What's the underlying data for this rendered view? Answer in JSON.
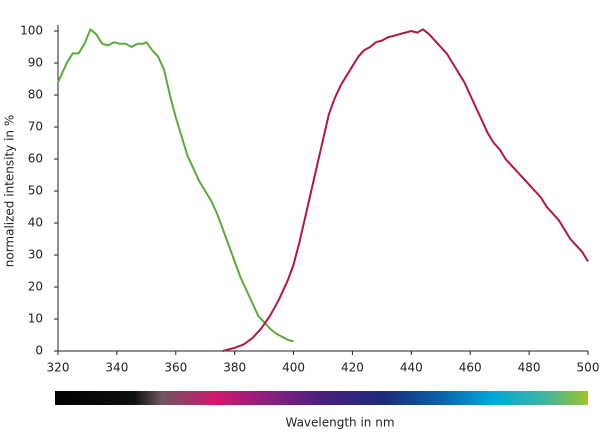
{
  "chart_data": {
    "type": "line",
    "x_label": "Wavelength in nm",
    "y_label": "normalized intensity in %",
    "xlim": [
      320,
      500
    ],
    "xticks": [
      320,
      340,
      360,
      380,
      400,
      420,
      440,
      460,
      480,
      500
    ],
    "ylim": [
      0,
      100
    ],
    "yticks": [
      0,
      10,
      20,
      30,
      40,
      50,
      60,
      70,
      80,
      90,
      100
    ],
    "series": [
      {
        "color": "#5aab3a",
        "x": [
          320,
          323,
          325,
          327,
          329,
          331,
          333,
          335,
          337,
          339,
          341,
          343,
          345,
          347,
          349,
          350,
          352,
          354,
          356,
          358,
          360,
          362,
          364,
          366,
          368,
          370,
          372,
          374,
          376,
          378,
          380,
          382,
          384,
          386,
          388,
          390,
          392,
          394,
          396,
          398,
          400
        ],
        "values": [
          84,
          90,
          93,
          93,
          96,
          100.5,
          99,
          96,
          95.5,
          96.5,
          96,
          96,
          95,
          96,
          96,
          96.5,
          94,
          92,
          88,
          80,
          73,
          67,
          61,
          57,
          53,
          50,
          47,
          43,
          38,
          33,
          28,
          23,
          19,
          15,
          11,
          9,
          7,
          5.5,
          4.5,
          3.5,
          3
        ]
      },
      {
        "color": "#b5173f",
        "x": [
          376,
          380,
          383,
          386,
          389,
          392,
          395,
          398,
          400,
          402,
          404,
          406,
          408,
          410,
          412,
          414,
          416,
          418,
          420,
          422,
          424,
          426,
          428,
          430,
          432,
          434,
          436,
          438,
          440,
          442,
          444,
          446,
          448,
          450,
          452,
          454,
          456,
          458,
          460,
          462,
          464,
          466,
          468,
          470,
          472,
          474,
          476,
          478,
          480,
          482,
          484,
          486,
          488,
          490,
          492,
          494,
          496,
          498,
          500
        ],
        "values": [
          0,
          1,
          2,
          4,
          7,
          11,
          16,
          22,
          27,
          34,
          42,
          50,
          58,
          66,
          74,
          79,
          83,
          86,
          89,
          92,
          94,
          95,
          96.5,
          97,
          98,
          98.5,
          99,
          99.5,
          100,
          99.5,
          100.5,
          99,
          97,
          95,
          93,
          90,
          87,
          84,
          80,
          76,
          72,
          68,
          65,
          63,
          60,
          58,
          56,
          54,
          52,
          50,
          48,
          45,
          43,
          41,
          38,
          35,
          33,
          31,
          28
        ]
      }
    ]
  }
}
